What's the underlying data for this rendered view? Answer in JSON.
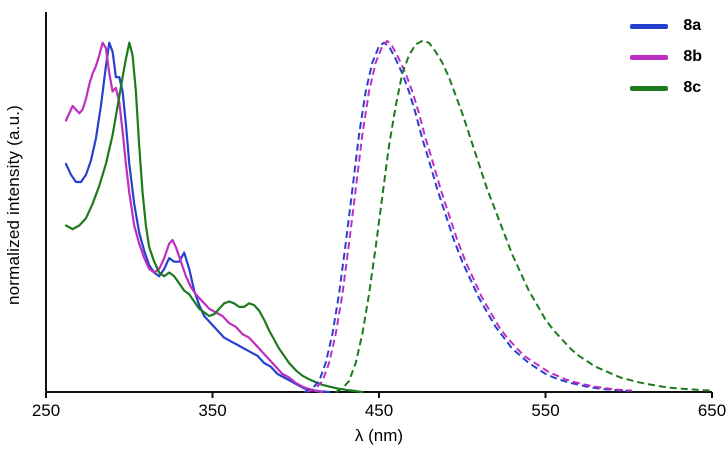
{
  "figure": {
    "xlabel": "λ (nm)",
    "ylabel": "normalized intensity (a.u.)"
  },
  "legend": {
    "items": [
      {
        "label": "8a",
        "color": "#2640cf"
      },
      {
        "label": "8b",
        "color": "#bf2fbf"
      },
      {
        "label": "8c",
        "color": "#1d7a1d"
      }
    ]
  },
  "chart_data": {
    "type": "line",
    "title": "",
    "xlabel": "λ (nm)",
    "ylabel": "normalized intensity (a.u.)",
    "xlim": [
      250,
      650
    ],
    "ylim": [
      0,
      1.05
    ],
    "x_ticks": [
      250,
      350,
      450,
      550,
      650
    ],
    "grid": false,
    "legend_position": "top-right",
    "series": [
      {
        "name": "8a absorption",
        "compound": "8a",
        "style": "solid",
        "color": "#2640cf",
        "points": [
          [
            262,
            0.63
          ],
          [
            265,
            0.6
          ],
          [
            268,
            0.58
          ],
          [
            271,
            0.58
          ],
          [
            274,
            0.6
          ],
          [
            277,
            0.64
          ],
          [
            280,
            0.7
          ],
          [
            283,
            0.79
          ],
          [
            286,
            0.9
          ],
          [
            288,
            0.965
          ],
          [
            290,
            0.94
          ],
          [
            292,
            0.87
          ],
          [
            294,
            0.87
          ],
          [
            296,
            0.83
          ],
          [
            298,
            0.74
          ],
          [
            300,
            0.63
          ],
          [
            303,
            0.52
          ],
          [
            306,
            0.44
          ],
          [
            309,
            0.39
          ],
          [
            312,
            0.35
          ],
          [
            315,
            0.33
          ],
          [
            318,
            0.32
          ],
          [
            321,
            0.34
          ],
          [
            324,
            0.37
          ],
          [
            327,
            0.36
          ],
          [
            330,
            0.36
          ],
          [
            333,
            0.385
          ],
          [
            336,
            0.34
          ],
          [
            339,
            0.28
          ],
          [
            342,
            0.24
          ],
          [
            345,
            0.21
          ],
          [
            349,
            0.19
          ],
          [
            353,
            0.17
          ],
          [
            357,
            0.15
          ],
          [
            361,
            0.14
          ],
          [
            365,
            0.13
          ],
          [
            369,
            0.12
          ],
          [
            373,
            0.11
          ],
          [
            377,
            0.1
          ],
          [
            381,
            0.08
          ],
          [
            385,
            0.07
          ],
          [
            389,
            0.05
          ],
          [
            393,
            0.04
          ],
          [
            397,
            0.03
          ],
          [
            401,
            0.02
          ],
          [
            405,
            0.01
          ],
          [
            410,
            0.005
          ],
          [
            415,
            0.002
          ],
          [
            420,
            0.0
          ]
        ]
      },
      {
        "name": "8b absorption",
        "compound": "8b",
        "style": "solid",
        "color": "#bf2fbf",
        "points": [
          [
            262,
            0.75
          ],
          [
            264,
            0.77
          ],
          [
            266,
            0.79
          ],
          [
            268,
            0.78
          ],
          [
            270,
            0.77
          ],
          [
            272,
            0.78
          ],
          [
            274,
            0.81
          ],
          [
            276,
            0.85
          ],
          [
            278,
            0.88
          ],
          [
            280,
            0.9
          ],
          [
            282,
            0.93
          ],
          [
            284,
            0.965
          ],
          [
            286,
            0.95
          ],
          [
            288,
            0.88
          ],
          [
            290,
            0.83
          ],
          [
            292,
            0.84
          ],
          [
            294,
            0.8
          ],
          [
            296,
            0.72
          ],
          [
            298,
            0.63
          ],
          [
            300,
            0.55
          ],
          [
            303,
            0.46
          ],
          [
            306,
            0.41
          ],
          [
            309,
            0.37
          ],
          [
            312,
            0.34
          ],
          [
            315,
            0.33
          ],
          [
            318,
            0.34
          ],
          [
            321,
            0.37
          ],
          [
            324,
            0.41
          ],
          [
            326,
            0.42
          ],
          [
            328,
            0.4
          ],
          [
            331,
            0.36
          ],
          [
            334,
            0.32
          ],
          [
            337,
            0.29
          ],
          [
            340,
            0.27
          ],
          [
            344,
            0.25
          ],
          [
            348,
            0.23
          ],
          [
            352,
            0.22
          ],
          [
            356,
            0.21
          ],
          [
            360,
            0.19
          ],
          [
            364,
            0.18
          ],
          [
            368,
            0.16
          ],
          [
            372,
            0.15
          ],
          [
            376,
            0.13
          ],
          [
            380,
            0.11
          ],
          [
            384,
            0.09
          ],
          [
            388,
            0.07
          ],
          [
            392,
            0.05
          ],
          [
            396,
            0.04
          ],
          [
            400,
            0.025
          ],
          [
            404,
            0.015
          ],
          [
            408,
            0.008
          ],
          [
            412,
            0.003
          ],
          [
            416,
            0.0
          ]
        ]
      },
      {
        "name": "8c absorption",
        "compound": "8c",
        "style": "solid",
        "color": "#1d7a1d",
        "points": [
          [
            262,
            0.46
          ],
          [
            266,
            0.45
          ],
          [
            270,
            0.46
          ],
          [
            274,
            0.48
          ],
          [
            278,
            0.52
          ],
          [
            282,
            0.57
          ],
          [
            286,
            0.63
          ],
          [
            290,
            0.71
          ],
          [
            293,
            0.79
          ],
          [
            296,
            0.87
          ],
          [
            298,
            0.92
          ],
          [
            300,
            0.965
          ],
          [
            302,
            0.93
          ],
          [
            304,
            0.83
          ],
          [
            306,
            0.68
          ],
          [
            308,
            0.55
          ],
          [
            310,
            0.46
          ],
          [
            312,
            0.4
          ],
          [
            315,
            0.36
          ],
          [
            318,
            0.33
          ],
          [
            321,
            0.32
          ],
          [
            324,
            0.33
          ],
          [
            327,
            0.32
          ],
          [
            330,
            0.3
          ],
          [
            333,
            0.28
          ],
          [
            336,
            0.27
          ],
          [
            339,
            0.25
          ],
          [
            342,
            0.23
          ],
          [
            345,
            0.22
          ],
          [
            348,
            0.21
          ],
          [
            351,
            0.215
          ],
          [
            354,
            0.23
          ],
          [
            357,
            0.245
          ],
          [
            360,
            0.25
          ],
          [
            363,
            0.245
          ],
          [
            366,
            0.235
          ],
          [
            369,
            0.235
          ],
          [
            372,
            0.245
          ],
          [
            375,
            0.24
          ],
          [
            378,
            0.225
          ],
          [
            381,
            0.2
          ],
          [
            384,
            0.17
          ],
          [
            387,
            0.145
          ],
          [
            390,
            0.12
          ],
          [
            393,
            0.1
          ],
          [
            396,
            0.08
          ],
          [
            400,
            0.06
          ],
          [
            404,
            0.045
          ],
          [
            408,
            0.035
          ],
          [
            412,
            0.027
          ],
          [
            416,
            0.02
          ],
          [
            420,
            0.015
          ],
          [
            425,
            0.01
          ],
          [
            430,
            0.006
          ],
          [
            435,
            0.003
          ],
          [
            440,
            0.0
          ]
        ]
      },
      {
        "name": "8a emission",
        "compound": "8a",
        "style": "dashed",
        "color": "#2640cf",
        "points": [
          [
            405,
            0.0
          ],
          [
            410,
            0.01
          ],
          [
            414,
            0.03
          ],
          [
            418,
            0.08
          ],
          [
            422,
            0.16
          ],
          [
            426,
            0.27
          ],
          [
            430,
            0.41
          ],
          [
            434,
            0.56
          ],
          [
            438,
            0.71
          ],
          [
            442,
            0.83
          ],
          [
            446,
            0.91
          ],
          [
            450,
            0.955
          ],
          [
            453,
            0.965
          ],
          [
            456,
            0.955
          ],
          [
            460,
            0.92
          ],
          [
            464,
            0.88
          ],
          [
            468,
            0.83
          ],
          [
            472,
            0.77
          ],
          [
            476,
            0.7
          ],
          [
            480,
            0.64
          ],
          [
            485,
            0.56
          ],
          [
            490,
            0.49
          ],
          [
            495,
            0.42
          ],
          [
            500,
            0.36
          ],
          [
            505,
            0.31
          ],
          [
            510,
            0.26
          ],
          [
            515,
            0.22
          ],
          [
            520,
            0.18
          ],
          [
            525,
            0.15
          ],
          [
            530,
            0.12
          ],
          [
            535,
            0.1
          ],
          [
            540,
            0.08
          ],
          [
            545,
            0.065
          ],
          [
            550,
            0.05
          ],
          [
            555,
            0.04
          ],
          [
            560,
            0.032
          ],
          [
            565,
            0.025
          ],
          [
            570,
            0.02
          ],
          [
            575,
            0.015
          ],
          [
            580,
            0.011
          ],
          [
            585,
            0.008
          ],
          [
            590,
            0.006
          ],
          [
            595,
            0.004
          ],
          [
            600,
            0.003
          ]
        ]
      },
      {
        "name": "8b emission",
        "compound": "8b",
        "style": "dashed",
        "color": "#bf2fbf",
        "points": [
          [
            407,
            0.0
          ],
          [
            412,
            0.01
          ],
          [
            416,
            0.03
          ],
          [
            420,
            0.08
          ],
          [
            424,
            0.16
          ],
          [
            428,
            0.27
          ],
          [
            432,
            0.41
          ],
          [
            436,
            0.56
          ],
          [
            440,
            0.71
          ],
          [
            444,
            0.83
          ],
          [
            448,
            0.91
          ],
          [
            452,
            0.955
          ],
          [
            455,
            0.97
          ],
          [
            458,
            0.955
          ],
          [
            462,
            0.92
          ],
          [
            466,
            0.88
          ],
          [
            470,
            0.83
          ],
          [
            474,
            0.77
          ],
          [
            478,
            0.7
          ],
          [
            482,
            0.64
          ],
          [
            487,
            0.56
          ],
          [
            492,
            0.49
          ],
          [
            497,
            0.42
          ],
          [
            502,
            0.36
          ],
          [
            507,
            0.31
          ],
          [
            512,
            0.26
          ],
          [
            517,
            0.22
          ],
          [
            522,
            0.18
          ],
          [
            527,
            0.15
          ],
          [
            532,
            0.125
          ],
          [
            537,
            0.1
          ],
          [
            542,
            0.085
          ],
          [
            547,
            0.07
          ],
          [
            552,
            0.055
          ],
          [
            557,
            0.045
          ],
          [
            562,
            0.035
          ],
          [
            567,
            0.028
          ],
          [
            572,
            0.022
          ],
          [
            577,
            0.017
          ],
          [
            582,
            0.013
          ],
          [
            587,
            0.01
          ],
          [
            592,
            0.007
          ],
          [
            597,
            0.005
          ],
          [
            602,
            0.004
          ]
        ]
      },
      {
        "name": "8c emission",
        "compound": "8c",
        "style": "dashed",
        "color": "#1d7a1d",
        "points": [
          [
            424,
            0.0
          ],
          [
            428,
            0.01
          ],
          [
            432,
            0.03
          ],
          [
            436,
            0.08
          ],
          [
            440,
            0.16
          ],
          [
            444,
            0.27
          ],
          [
            448,
            0.4
          ],
          [
            452,
            0.54
          ],
          [
            456,
            0.68
          ],
          [
            460,
            0.79
          ],
          [
            464,
            0.88
          ],
          [
            468,
            0.93
          ],
          [
            472,
            0.96
          ],
          [
            476,
            0.97
          ],
          [
            480,
            0.965
          ],
          [
            484,
            0.94
          ],
          [
            488,
            0.91
          ],
          [
            492,
            0.87
          ],
          [
            496,
            0.82
          ],
          [
            500,
            0.77
          ],
          [
            505,
            0.7
          ],
          [
            510,
            0.63
          ],
          [
            515,
            0.56
          ],
          [
            520,
            0.5
          ],
          [
            525,
            0.44
          ],
          [
            530,
            0.38
          ],
          [
            535,
            0.33
          ],
          [
            540,
            0.28
          ],
          [
            545,
            0.24
          ],
          [
            550,
            0.2
          ],
          [
            555,
            0.17
          ],
          [
            560,
            0.145
          ],
          [
            565,
            0.12
          ],
          [
            570,
            0.1
          ],
          [
            575,
            0.085
          ],
          [
            580,
            0.07
          ],
          [
            585,
            0.06
          ],
          [
            590,
            0.05
          ],
          [
            595,
            0.04
          ],
          [
            600,
            0.034
          ],
          [
            605,
            0.028
          ],
          [
            610,
            0.023
          ],
          [
            615,
            0.019
          ],
          [
            620,
            0.015
          ],
          [
            625,
            0.012
          ],
          [
            630,
            0.01
          ],
          [
            635,
            0.008
          ],
          [
            640,
            0.0065
          ],
          [
            645,
            0.005
          ],
          [
            650,
            0.004
          ]
        ]
      }
    ]
  }
}
